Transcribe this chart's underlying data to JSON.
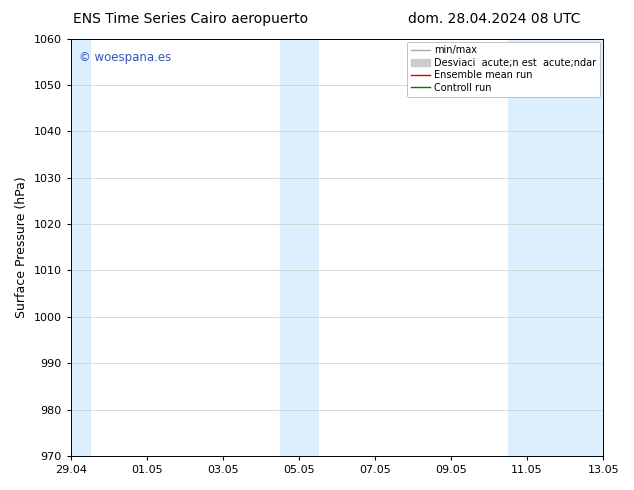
{
  "title_left": "ENS Time Series Cairo aeropuerto",
  "title_right": "dom. 28.04.2024 08 UTC",
  "ylabel": "Surface Pressure (hPa)",
  "ylim": [
    970,
    1060
  ],
  "yticks": [
    970,
    980,
    990,
    1000,
    1010,
    1020,
    1030,
    1040,
    1050,
    1060
  ],
  "xtick_labels": [
    "29.04",
    "01.05",
    "03.05",
    "05.05",
    "07.05",
    "09.05",
    "11.05",
    "13.05"
  ],
  "xtick_positions": [
    0,
    2,
    4,
    6,
    8,
    10,
    12,
    14
  ],
  "shaded_bands": [
    {
      "x_start": 0.0,
      "x_end": 0.5
    },
    {
      "x_start": 5.5,
      "x_end": 6.5
    },
    {
      "x_start": 11.5,
      "x_end": 14.0
    }
  ],
  "shaded_color": "#ddeeff",
  "watermark_text": "© woespana.es",
  "watermark_color": "#3355bb",
  "legend_line1_label": "min/max",
  "legend_line1_color": "#aaaaaa",
  "legend_line2_label": "Desviaci  acute;n est  acute;ndar",
  "legend_line2_color": "#cccccc",
  "legend_line3_label": "Ensemble mean run",
  "legend_line3_color": "#dd0000",
  "legend_line4_label": "Controll run",
  "legend_line4_color": "#007700",
  "bg_color": "#ffffff",
  "grid_color": "#cccccc",
  "title_fontsize": 10,
  "axis_label_fontsize": 9,
  "tick_fontsize": 8,
  "legend_fontsize": 7
}
